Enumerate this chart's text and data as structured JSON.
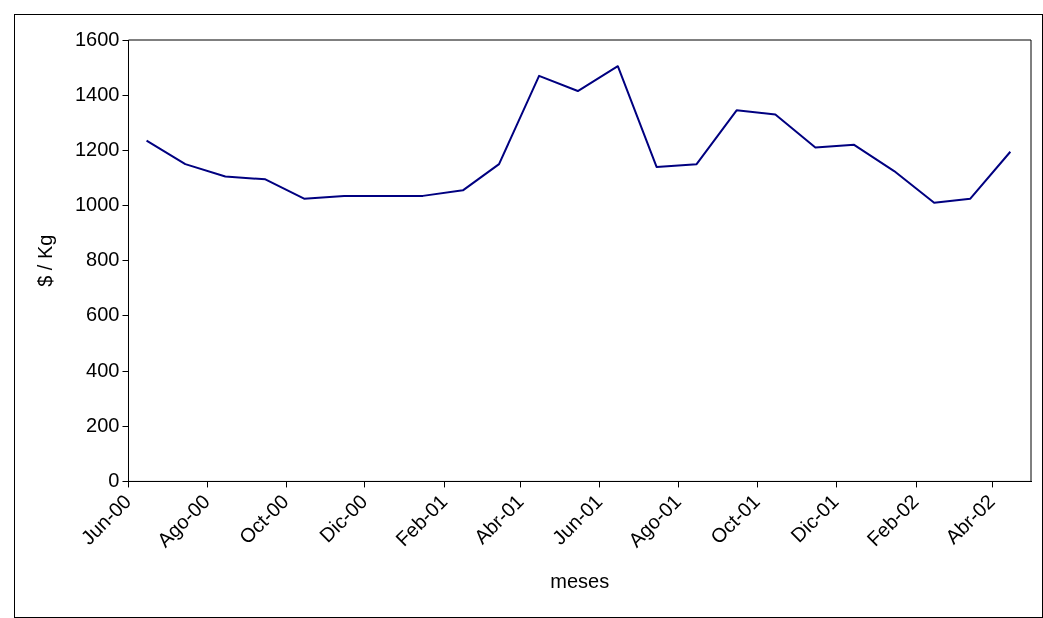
{
  "chart_data": {
    "type": "line",
    "xlabel": "meses",
    "ylabel": "$ / Kg",
    "x": [
      "2000-06-15",
      "2000-07-15",
      "2000-08-15",
      "2000-09-15",
      "2000-10-15",
      "2000-11-15",
      "2000-12-15",
      "2001-01-15",
      "2001-02-15",
      "2001-03-15",
      "2001-04-15",
      "2001-05-15",
      "2001-06-15",
      "2001-07-15",
      "2001-08-15",
      "2001-09-15",
      "2001-10-15",
      "2001-11-15",
      "2001-12-15",
      "2002-01-15",
      "2002-02-15",
      "2002-03-15",
      "2002-04-15"
    ],
    "series": [
      {
        "color": "#000080",
        "values": [
          1235,
          1150,
          1105,
          1095,
          1025,
          1035,
          1035,
          1035,
          1055,
          1150,
          1470,
          1415,
          1505,
          1140,
          1150,
          1345,
          1330,
          1210,
          1220,
          1125,
          1010,
          1025,
          1195
        ]
      }
    ],
    "xlim": [
      "2000-06-01",
      "2002-05-01"
    ],
    "xticks": [
      {
        "value": "2000-06-01",
        "label": "Jun-00"
      },
      {
        "value": "2000-08-01",
        "label": "Ago-00"
      },
      {
        "value": "2000-10-01",
        "label": "Oct-00"
      },
      {
        "value": "2000-12-01",
        "label": "Dic-00"
      },
      {
        "value": "2001-02-01",
        "label": "Feb-01"
      },
      {
        "value": "2001-04-01",
        "label": "Abr-01"
      },
      {
        "value": "2001-06-01",
        "label": "Jun-01"
      },
      {
        "value": "2001-08-01",
        "label": "Ago-01"
      },
      {
        "value": "2001-10-01",
        "label": "Oct-01"
      },
      {
        "value": "2001-12-01",
        "label": "Dic-01"
      },
      {
        "value": "2002-02-01",
        "label": "Feb-02"
      },
      {
        "value": "2002-04-01",
        "label": "Abr-02"
      }
    ],
    "ylim": [
      0,
      1600
    ],
    "yticks": [
      0,
      200,
      400,
      600,
      800,
      1000,
      1200,
      1400,
      1600
    ],
    "grid": false,
    "legend": false,
    "marker": "none",
    "line_style": "solid"
  }
}
